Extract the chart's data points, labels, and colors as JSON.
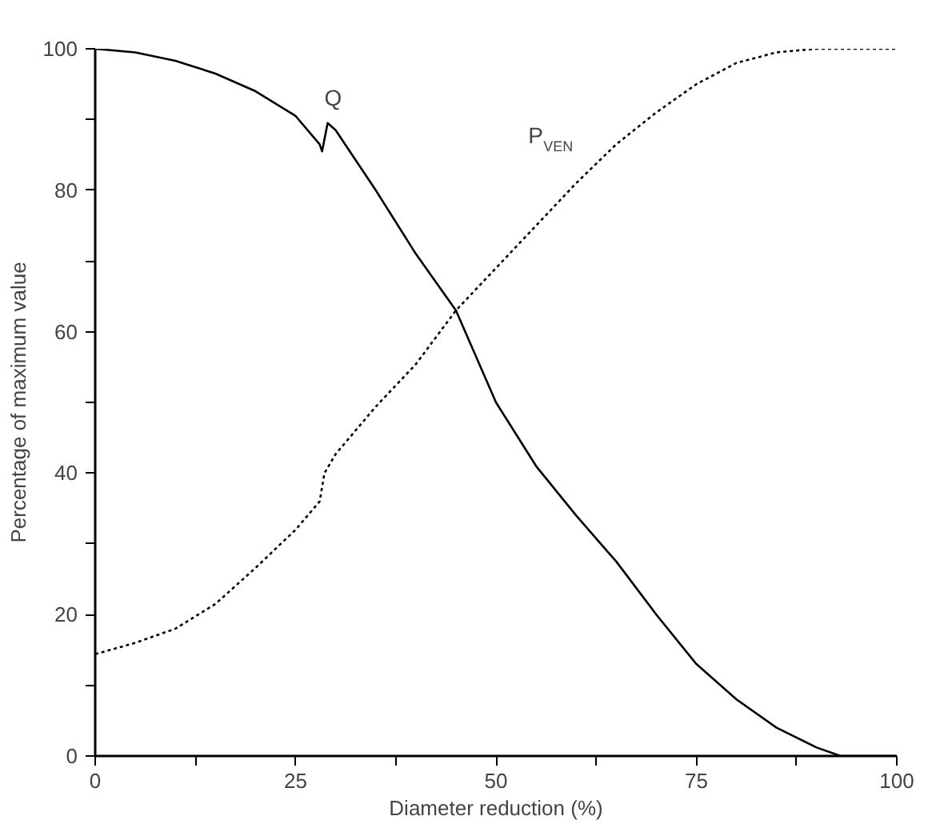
{
  "chart_data": {
    "type": "line",
    "xlabel": "Diameter reduction (%)",
    "ylabel": "Percentage of maximum value",
    "xlim": [
      0,
      100
    ],
    "ylim": [
      0,
      100
    ],
    "xticks": [
      0,
      {
        "value": 12.5,
        "label": null
      },
      25,
      {
        "value": 37.5,
        "label": null
      },
      50,
      {
        "value": 62.5,
        "label": null
      },
      75,
      {
        "value": 87.5,
        "label": null
      },
      100
    ],
    "yticks": [
      0,
      {
        "value": 10,
        "label": null
      },
      20,
      {
        "value": 30,
        "label": null
      },
      40,
      {
        "value": 50,
        "label": null
      },
      60,
      {
        "value": 70,
        "label": null
      },
      80,
      {
        "value": 90,
        "label": null
      },
      100
    ],
    "grid": false,
    "legend": false,
    "series": [
      {
        "name": "Q",
        "color": "#000000",
        "line_style": "solid",
        "x": [
          0,
          5,
          10,
          15,
          20,
          25,
          28,
          28.3,
          29,
          30,
          35,
          40,
          45,
          50,
          55,
          60,
          65,
          70,
          75,
          80,
          85,
          90,
          93,
          100
        ],
        "values": [
          100,
          99.5,
          98.3,
          96.5,
          94,
          90.5,
          86.5,
          85.5,
          89.5,
          88.5,
          80,
          71,
          63,
          50,
          41,
          34,
          27.5,
          20,
          13,
          8,
          4,
          1.2,
          0,
          0
        ]
      },
      {
        "name": "P$_{VEN}$",
        "color": "#000000",
        "line_style": "dashed",
        "x": [
          0,
          5,
          10,
          15,
          20,
          25,
          28,
          28.6,
          30,
          35,
          40,
          45,
          50,
          55,
          60,
          65,
          70,
          75,
          80,
          85,
          90,
          100
        ],
        "values": [
          14.4,
          16,
          18,
          21.5,
          26.6,
          32,
          36,
          40,
          42.7,
          49.4,
          55.4,
          63,
          69,
          75,
          81,
          86.5,
          91,
          95,
          98,
          99.5,
          100,
          100
        ]
      }
    ]
  }
}
